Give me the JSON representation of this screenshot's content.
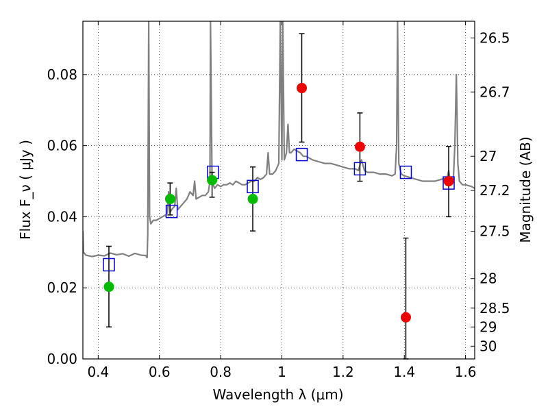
{
  "chart_data": {
    "type": "scatter",
    "xlabel": "Wavelength  λ (μm)",
    "ylabel": "Flux  F_ν  ( μJy )",
    "ylabel_right": "Magnitude (AB)",
    "xlim": [
      0.35,
      1.63
    ],
    "ylim": [
      0.0,
      0.095
    ],
    "grid": true,
    "x_ticks": [
      0.4,
      0.6,
      0.8,
      1.0,
      1.2,
      1.4,
      1.6
    ],
    "x_tick_labels": [
      "0.4",
      "0.6",
      "0.8",
      "1",
      "1.2",
      "1.4",
      "1.6"
    ],
    "y_ticks": [
      0.0,
      0.02,
      0.04,
      0.06,
      0.08
    ],
    "y_tick_labels": [
      "0.00",
      "0.02",
      "0.04",
      "0.06",
      "0.08"
    ],
    "right_ticks": [
      {
        "label": "26.5",
        "flux": 0.0903
      },
      {
        "label": "26.7",
        "flux": 0.0751
      },
      {
        "label": "27",
        "flux": 0.057
      },
      {
        "label": "27.2",
        "flux": 0.0474
      },
      {
        "label": "27.5",
        "flux": 0.0359
      },
      {
        "label": "28",
        "flux": 0.0226
      },
      {
        "label": "28.5",
        "flux": 0.0143
      },
      {
        "label": "29",
        "flux": 0.009
      },
      {
        "label": "30",
        "flux": 0.0036
      }
    ],
    "spectrum": {
      "color": "#808080",
      "points": [
        [
          0.35,
          0.036
        ],
        [
          0.352,
          0.03
        ],
        [
          0.36,
          0.0292
        ],
        [
          0.38,
          0.0288
        ],
        [
          0.4,
          0.0292
        ],
        [
          0.42,
          0.029
        ],
        [
          0.44,
          0.0298
        ],
        [
          0.46,
          0.0293
        ],
        [
          0.48,
          0.0296
        ],
        [
          0.5,
          0.0289
        ],
        [
          0.52,
          0.0297
        ],
        [
          0.54,
          0.0292
        ],
        [
          0.555,
          0.0291
        ],
        [
          0.56,
          0.0285
        ],
        [
          0.562,
          0.035
        ],
        [
          0.565,
          0.095
        ],
        [
          0.568,
          0.04
        ],
        [
          0.572,
          0.038
        ],
        [
          0.58,
          0.039
        ],
        [
          0.59,
          0.039
        ],
        [
          0.6,
          0.0395
        ],
        [
          0.61,
          0.04
        ],
        [
          0.62,
          0.0405
        ],
        [
          0.625,
          0.041
        ],
        [
          0.63,
          0.047
        ],
        [
          0.633,
          0.041
        ],
        [
          0.64,
          0.042
        ],
        [
          0.65,
          0.043
        ],
        [
          0.655,
          0.048
        ],
        [
          0.66,
          0.042
        ],
        [
          0.67,
          0.043
        ],
        [
          0.68,
          0.044
        ],
        [
          0.69,
          0.045
        ],
        [
          0.7,
          0.047
        ],
        [
          0.71,
          0.046
        ],
        [
          0.715,
          0.05
        ],
        [
          0.72,
          0.045
        ],
        [
          0.73,
          0.0455
        ],
        [
          0.74,
          0.046
        ],
        [
          0.75,
          0.046
        ],
        [
          0.76,
          0.047
        ],
        [
          0.765,
          0.05
        ],
        [
          0.767,
          0.095
        ],
        [
          0.772,
          0.05
        ],
        [
          0.78,
          0.048
        ],
        [
          0.79,
          0.049
        ],
        [
          0.8,
          0.0485
        ],
        [
          0.81,
          0.049
        ],
        [
          0.82,
          0.049
        ],
        [
          0.83,
          0.0495
        ],
        [
          0.84,
          0.049
        ],
        [
          0.85,
          0.05
        ],
        [
          0.86,
          0.0495
        ],
        [
          0.87,
          0.049
        ],
        [
          0.88,
          0.049
        ],
        [
          0.89,
          0.0495
        ],
        [
          0.9,
          0.05
        ],
        [
          0.91,
          0.05
        ],
        [
          0.92,
          0.051
        ],
        [
          0.93,
          0.0505
        ],
        [
          0.94,
          0.051
        ],
        [
          0.95,
          0.052
        ],
        [
          0.955,
          0.058
        ],
        [
          0.96,
          0.052
        ],
        [
          0.97,
          0.052
        ],
        [
          0.98,
          0.053
        ],
        [
          0.99,
          0.055
        ],
        [
          0.995,
          0.095
        ],
        [
          1.0,
          0.056
        ],
        [
          1.003,
          0.095
        ],
        [
          1.008,
          0.056
        ],
        [
          1.015,
          0.058
        ],
        [
          1.02,
          0.066
        ],
        [
          1.025,
          0.058
        ],
        [
          1.03,
          0.058
        ],
        [
          1.04,
          0.059
        ],
        [
          1.05,
          0.0585
        ],
        [
          1.06,
          0.058
        ],
        [
          1.07,
          0.057
        ],
        [
          1.08,
          0.057
        ],
        [
          1.09,
          0.0565
        ],
        [
          1.1,
          0.056
        ],
        [
          1.12,
          0.0555
        ],
        [
          1.14,
          0.055
        ],
        [
          1.16,
          0.055
        ],
        [
          1.18,
          0.0545
        ],
        [
          1.2,
          0.054
        ],
        [
          1.22,
          0.0535
        ],
        [
          1.24,
          0.0535
        ],
        [
          1.25,
          0.053
        ],
        [
          1.26,
          0.056
        ],
        [
          1.27,
          0.053
        ],
        [
          1.28,
          0.0525
        ],
        [
          1.3,
          0.0525
        ],
        [
          1.32,
          0.052
        ],
        [
          1.34,
          0.052
        ],
        [
          1.36,
          0.0515
        ],
        [
          1.37,
          0.052
        ],
        [
          1.375,
          0.06
        ],
        [
          1.378,
          0.095
        ],
        [
          1.382,
          0.055
        ],
        [
          1.39,
          0.052
        ],
        [
          1.4,
          0.0515
        ],
        [
          1.42,
          0.051
        ],
        [
          1.44,
          0.0505
        ],
        [
          1.46,
          0.05
        ],
        [
          1.48,
          0.05
        ],
        [
          1.5,
          0.05
        ],
        [
          1.52,
          0.0505
        ],
        [
          1.54,
          0.051
        ],
        [
          1.545,
          0.053
        ],
        [
          1.55,
          0.05
        ],
        [
          1.56,
          0.05
        ],
        [
          1.565,
          0.06
        ],
        [
          1.57,
          0.08
        ],
        [
          1.575,
          0.055
        ],
        [
          1.58,
          0.05
        ],
        [
          1.59,
          0.049
        ],
        [
          1.6,
          0.049
        ],
        [
          1.62,
          0.0485
        ],
        [
          1.63,
          0.048
        ]
      ]
    },
    "series": [
      {
        "marker": "open-square",
        "color": "#0000cc",
        "points": [
          {
            "x": 0.435,
            "y": 0.0265
          },
          {
            "x": 0.64,
            "y": 0.0415
          },
          {
            "x": 0.775,
            "y": 0.0525
          },
          {
            "x": 0.905,
            "y": 0.0485
          },
          {
            "x": 1.065,
            "y": 0.0575
          },
          {
            "x": 1.255,
            "y": 0.0535
          },
          {
            "x": 1.405,
            "y": 0.0525
          },
          {
            "x": 1.545,
            "y": 0.0495
          }
        ]
      },
      {
        "marker": "filled-circle",
        "color": "#00bb00",
        "points": [
          {
            "x": 0.435,
            "y": 0.0203,
            "yerr_low": 0.009,
            "yerr_high": 0.0317
          },
          {
            "x": 0.635,
            "y": 0.045,
            "yerr_low": 0.0405,
            "yerr_high": 0.0495
          },
          {
            "x": 0.772,
            "y": 0.0503,
            "yerr_low": 0.0455,
            "yerr_high": 0.0525
          },
          {
            "x": 0.905,
            "y": 0.045,
            "yerr_low": 0.036,
            "yerr_high": 0.054
          }
        ]
      },
      {
        "marker": "filled-circle",
        "color": "#ee0000",
        "points": [
          {
            "x": 1.065,
            "y": 0.0762,
            "yerr_low": 0.061,
            "yerr_high": 0.0915
          },
          {
            "x": 1.255,
            "y": 0.0597,
            "yerr_low": 0.05,
            "yerr_high": 0.0692
          },
          {
            "x": 1.405,
            "y": 0.0117,
            "yerr_low": 0.0,
            "yerr_high": 0.034
          },
          {
            "x": 1.545,
            "y": 0.05,
            "yerr_low": 0.04,
            "yerr_high": 0.0598
          }
        ]
      }
    ]
  }
}
